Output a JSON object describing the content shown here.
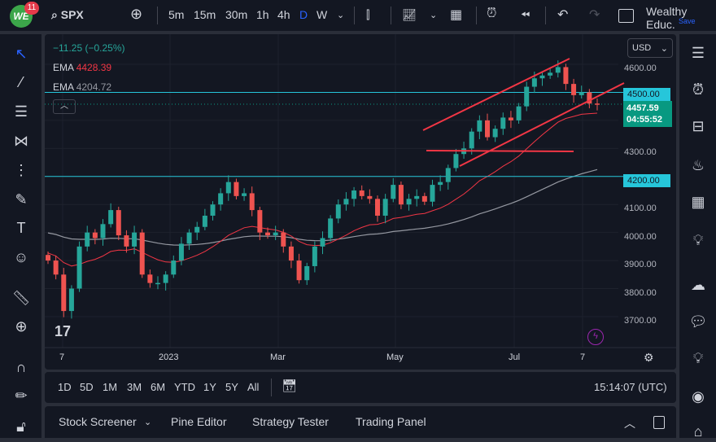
{
  "topbar": {
    "notifications": "11",
    "logo": "WE",
    "symbol": "SPX",
    "intervals": [
      "5m",
      "15m",
      "30m",
      "1h",
      "4h",
      "D",
      "W"
    ],
    "active_interval": "D",
    "account": "Wealthy Educ.",
    "save": "Save"
  },
  "legend": {
    "change": "−11.25 (−0.25%)",
    "ema1_label": "EMA",
    "ema1_value": "4428.39",
    "ema2_label": "EMA",
    "ema2_value": "4204.72"
  },
  "currency": "USD",
  "price_axis": {
    "ticks": [
      "4600.00",
      "4300.00",
      "4100.00",
      "4000.00",
      "3900.00",
      "3800.00",
      "3700.00"
    ],
    "line_4500": "4500.00",
    "line_4200": "4200.00",
    "last_price": "4457.59",
    "countdown": "04:55:52"
  },
  "time_axis": [
    "7",
    "2023",
    "Mar",
    "May",
    "Jul",
    "7"
  ],
  "range_bar": {
    "ranges": [
      "1D",
      "5D",
      "1M",
      "3M",
      "6M",
      "YTD",
      "1Y",
      "5Y",
      "All"
    ],
    "clock": "15:14:07 (UTC)"
  },
  "bottom_tabs": [
    "Stock Screener",
    "Pine Editor",
    "Strategy Tester",
    "Trading Panel"
  ],
  "colors": {
    "up": "#26a69a",
    "down": "#ef5350",
    "accent": "#2962ff",
    "hline": "#26c6da",
    "ema_fast": "#f23645",
    "ema_slow": "#9598a1"
  },
  "chart_data": {
    "type": "candlestick",
    "symbol": "SPX",
    "ylim": [
      3650,
      4650
    ],
    "closes": [
      3900,
      3850,
      3720,
      3800,
      3950,
      4000,
      3980,
      4030,
      4080,
      3990,
      3950,
      4000,
      3850,
      3820,
      3820,
      3850,
      3900,
      3960,
      4000,
      4020,
      4060,
      4100,
      4140,
      4180,
      4130,
      4140,
      4080,
      4000,
      3990,
      4000,
      3950,
      3900,
      3830,
      3880,
      3950,
      3980,
      4050,
      4100,
      4120,
      4150,
      4130,
      4120,
      4060,
      4120,
      4170,
      4100,
      4120,
      4130,
      4110,
      4170,
      4180,
      4230,
      4280,
      4300,
      4360,
      4400,
      4340,
      4370,
      4410,
      4400,
      4450,
      4520,
      4550,
      4560,
      4570,
      4590,
      4530,
      4490,
      4500,
      4460,
      4457.59
    ],
    "horizontal_levels": [
      4500,
      4200
    ]
  }
}
